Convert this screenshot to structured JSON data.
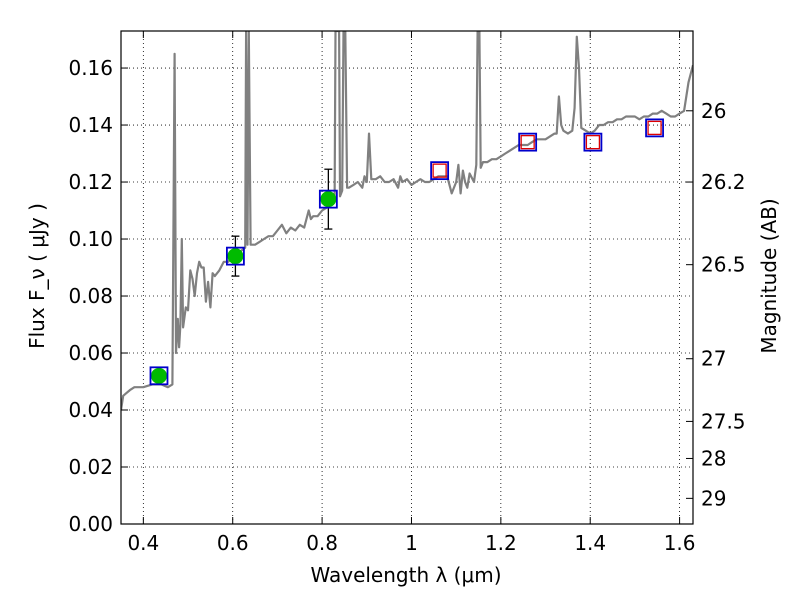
{
  "chart_data": {
    "type": "line",
    "xlabel": "Wavelength  λ (μm)",
    "ylabel": "Flux  F_ν  ( μJy )",
    "ylabel_right": "Magnitude (AB)",
    "xlim": [
      0.35,
      1.63
    ],
    "ylim": [
      0.0,
      0.173
    ],
    "grid": true,
    "x_ticks": [
      0.4,
      0.6,
      0.8,
      1.0,
      1.2,
      1.4,
      1.6
    ],
    "x_tick_labels": [
      "0.4",
      "0.6",
      "0.8",
      "1",
      "1.2",
      "1.4",
      "1.6"
    ],
    "y_ticks": [
      0.0,
      0.02,
      0.04,
      0.06,
      0.08,
      0.1,
      0.12,
      0.14,
      0.16
    ],
    "y_tick_labels": [
      "0.00",
      "0.02",
      "0.04",
      "0.06",
      "0.08",
      "0.10",
      "0.12",
      "0.14",
      "0.16"
    ],
    "right_ticks": [
      {
        "label": "26",
        "flux": 0.145
      },
      {
        "label": "26.2",
        "flux": 0.12
      },
      {
        "label": "26.5",
        "flux": 0.091
      },
      {
        "label": "27",
        "flux": 0.058
      },
      {
        "label": "27.5",
        "flux": 0.036
      },
      {
        "label": "28",
        "flux": 0.023
      },
      {
        "label": "29",
        "flux": 0.009
      }
    ],
    "series": [
      {
        "kind": "spectrum",
        "color": "#808080",
        "points": [
          [
            0.35,
            0.04
          ],
          [
            0.355,
            0.045
          ],
          [
            0.37,
            0.047
          ],
          [
            0.38,
            0.048
          ],
          [
            0.4,
            0.048
          ],
          [
            0.42,
            0.049
          ],
          [
            0.44,
            0.049
          ],
          [
            0.455,
            0.048
          ],
          [
            0.465,
            0.049
          ],
          [
            0.47,
            0.165
          ],
          [
            0.473,
            0.06
          ],
          [
            0.477,
            0.072
          ],
          [
            0.48,
            0.062
          ],
          [
            0.483,
            0.07
          ],
          [
            0.486,
            0.1
          ],
          [
            0.489,
            0.069
          ],
          [
            0.495,
            0.076
          ],
          [
            0.5,
            0.075
          ],
          [
            0.505,
            0.089
          ],
          [
            0.51,
            0.086
          ],
          [
            0.515,
            0.08
          ],
          [
            0.52,
            0.088
          ],
          [
            0.525,
            0.092
          ],
          [
            0.53,
            0.09
          ],
          [
            0.535,
            0.09
          ],
          [
            0.54,
            0.078
          ],
          [
            0.545,
            0.085
          ],
          [
            0.55,
            0.076
          ],
          [
            0.555,
            0.088
          ],
          [
            0.56,
            0.087
          ],
          [
            0.57,
            0.089
          ],
          [
            0.58,
            0.092
          ],
          [
            0.59,
            0.092
          ],
          [
            0.6,
            0.094
          ],
          [
            0.61,
            0.095
          ],
          [
            0.62,
            0.096
          ],
          [
            0.628,
            0.097
          ],
          [
            0.63,
            0.173
          ],
          [
            0.633,
            0.098
          ],
          [
            0.636,
            0.173
          ],
          [
            0.64,
            0.098
          ],
          [
            0.65,
            0.098
          ],
          [
            0.66,
            0.099
          ],
          [
            0.67,
            0.1
          ],
          [
            0.68,
            0.101
          ],
          [
            0.69,
            0.101
          ],
          [
            0.7,
            0.103
          ],
          [
            0.71,
            0.105
          ],
          [
            0.72,
            0.102
          ],
          [
            0.73,
            0.104
          ],
          [
            0.74,
            0.103
          ],
          [
            0.75,
            0.105
          ],
          [
            0.76,
            0.104
          ],
          [
            0.77,
            0.11
          ],
          [
            0.775,
            0.107
          ],
          [
            0.78,
            0.108
          ],
          [
            0.79,
            0.108
          ],
          [
            0.8,
            0.11
          ],
          [
            0.81,
            0.111
          ],
          [
            0.82,
            0.112
          ],
          [
            0.828,
            0.113
          ],
          [
            0.83,
            0.173
          ],
          [
            0.838,
            0.173
          ],
          [
            0.84,
            0.115
          ],
          [
            0.845,
            0.117
          ],
          [
            0.848,
            0.173
          ],
          [
            0.852,
            0.173
          ],
          [
            0.856,
            0.118
          ],
          [
            0.86,
            0.118
          ],
          [
            0.87,
            0.119
          ],
          [
            0.88,
            0.12
          ],
          [
            0.89,
            0.118
          ],
          [
            0.895,
            0.122
          ],
          [
            0.9,
            0.12
          ],
          [
            0.905,
            0.137
          ],
          [
            0.91,
            0.121
          ],
          [
            0.92,
            0.121
          ],
          [
            0.93,
            0.122
          ],
          [
            0.94,
            0.12
          ],
          [
            0.95,
            0.12
          ],
          [
            0.96,
            0.121
          ],
          [
            0.97,
            0.118
          ],
          [
            0.975,
            0.122
          ],
          [
            0.98,
            0.12
          ],
          [
            0.99,
            0.121
          ],
          [
            1.0,
            0.119
          ],
          [
            1.01,
            0.12
          ],
          [
            1.02,
            0.121
          ],
          [
            1.03,
            0.12
          ],
          [
            1.04,
            0.12
          ],
          [
            1.05,
            0.121
          ],
          [
            1.06,
            0.122
          ],
          [
            1.07,
            0.122
          ],
          [
            1.08,
            0.122
          ],
          [
            1.09,
            0.116
          ],
          [
            1.1,
            0.12
          ],
          [
            1.105,
            0.126
          ],
          [
            1.11,
            0.116
          ],
          [
            1.115,
            0.124
          ],
          [
            1.12,
            0.12
          ],
          [
            1.125,
            0.118
          ],
          [
            1.13,
            0.123
          ],
          [
            1.14,
            0.12
          ],
          [
            1.145,
            0.126
          ],
          [
            1.148,
            0.173
          ],
          [
            1.152,
            0.173
          ],
          [
            1.155,
            0.125
          ],
          [
            1.16,
            0.127
          ],
          [
            1.17,
            0.127
          ],
          [
            1.18,
            0.128
          ],
          [
            1.19,
            0.128
          ],
          [
            1.2,
            0.129
          ],
          [
            1.21,
            0.13
          ],
          [
            1.22,
            0.131
          ],
          [
            1.23,
            0.132
          ],
          [
            1.24,
            0.133
          ],
          [
            1.25,
            0.133
          ],
          [
            1.26,
            0.133
          ],
          [
            1.27,
            0.134
          ],
          [
            1.28,
            0.135
          ],
          [
            1.29,
            0.135
          ],
          [
            1.3,
            0.135
          ],
          [
            1.31,
            0.136
          ],
          [
            1.32,
            0.137
          ],
          [
            1.325,
            0.137
          ],
          [
            1.33,
            0.15
          ],
          [
            1.335,
            0.14
          ],
          [
            1.34,
            0.138
          ],
          [
            1.35,
            0.137
          ],
          [
            1.36,
            0.138
          ],
          [
            1.365,
            0.146
          ],
          [
            1.37,
            0.171
          ],
          [
            1.375,
            0.16
          ],
          [
            1.38,
            0.139
          ],
          [
            1.39,
            0.138
          ],
          [
            1.4,
            0.137
          ],
          [
            1.41,
            0.138
          ],
          [
            1.42,
            0.14
          ],
          [
            1.43,
            0.14
          ],
          [
            1.44,
            0.141
          ],
          [
            1.45,
            0.141
          ],
          [
            1.46,
            0.142
          ],
          [
            1.47,
            0.142
          ],
          [
            1.48,
            0.143
          ],
          [
            1.49,
            0.143
          ],
          [
            1.5,
            0.143
          ],
          [
            1.51,
            0.142
          ],
          [
            1.52,
            0.143
          ],
          [
            1.53,
            0.143
          ],
          [
            1.54,
            0.144
          ],
          [
            1.55,
            0.144
          ],
          [
            1.56,
            0.145
          ],
          [
            1.57,
            0.144
          ],
          [
            1.58,
            0.143
          ],
          [
            1.59,
            0.143
          ],
          [
            1.6,
            0.144
          ],
          [
            1.61,
            0.145
          ],
          [
            1.62,
            0.155
          ],
          [
            1.63,
            0.161
          ]
        ]
      },
      {
        "kind": "model-photometry",
        "marker": "blue-square",
        "color": "#0000cc",
        "x": [
          0.435,
          0.606,
          0.814,
          1.063,
          1.26,
          1.406,
          1.544
        ],
        "y": [
          0.052,
          0.094,
          0.114,
          0.124,
          0.134,
          0.134,
          0.139
        ]
      },
      {
        "kind": "observed-upper-limits",
        "marker": "red-square",
        "color": "#dd0000",
        "x": [
          1.063,
          1.26,
          1.406,
          1.544
        ],
        "y": [
          0.124,
          0.134,
          0.134,
          0.139
        ]
      },
      {
        "kind": "observed-detections",
        "marker": "green-circle",
        "color": "#00bb00",
        "x": [
          0.435,
          0.606,
          0.814
        ],
        "y": [
          0.052,
          0.094,
          0.114
        ],
        "err": [
          0.0,
          0.007,
          0.0105
        ]
      }
    ]
  }
}
